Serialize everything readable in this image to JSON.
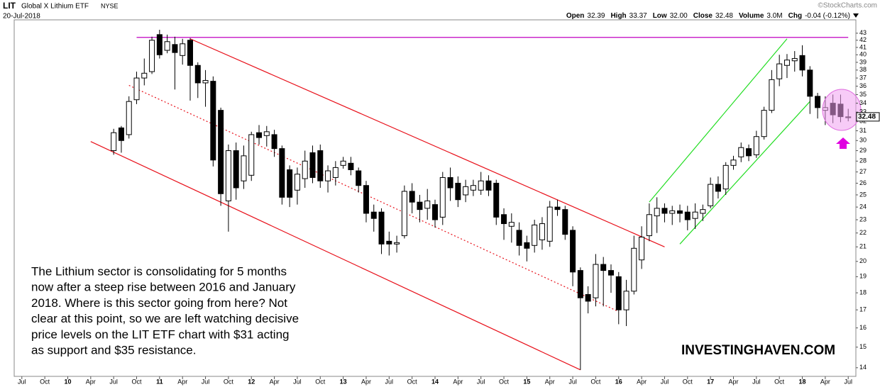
{
  "chart_data": {
    "type": "candlestick",
    "symbol": "LIT",
    "name": "Global X Lithium ETF",
    "exchange": "NYSE",
    "date": "20-Jul-2018",
    "source": "©StockCharts.com",
    "quote": [
      {
        "label": "Open",
        "value": "32.39"
      },
      {
        "label": "High",
        "value": "33.37"
      },
      {
        "label": "Low",
        "value": "32.00"
      },
      {
        "label": "Close",
        "value": "32.48"
      },
      {
        "label": "Volume",
        "value": "3.0M"
      },
      {
        "label": "Chg",
        "value": "-0.04 (-0.12%)"
      }
    ],
    "annotation": [
      "The Lithium sector is consolidating for 5 months",
      "now after a steep rise between 2016 and January",
      "2018. Where is this sector going from here? Not",
      "clear at this point, so we are left watching decisive",
      "price levels on the LIT ETF chart with $31 acting",
      "as support and $35 resistance."
    ],
    "watermark": "INVESTINGHAVEN.COM",
    "log_scale": true,
    "grid": false,
    "color": "#000000",
    "last_price": 32.48,
    "xlim": [
      "2009-06",
      "2018-08"
    ],
    "ylim": [
      13.6,
      43.5
    ],
    "yticks": [
      14,
      15,
      16,
      17,
      18,
      19,
      20,
      21,
      22,
      23,
      24,
      25,
      26,
      27,
      28,
      29,
      30,
      31,
      32,
      33,
      34,
      35,
      36,
      37,
      38,
      39,
      40,
      41,
      42,
      43
    ],
    "xticks": [
      {
        "value": "2009-07",
        "label": "Jul"
      },
      {
        "value": "2009-10",
        "label": "Oct"
      },
      {
        "value": "2010-01",
        "label": "10"
      },
      {
        "value": "2010-04",
        "label": "Apr"
      },
      {
        "value": "2010-07",
        "label": "Jul"
      },
      {
        "value": "2010-10",
        "label": "Oct"
      },
      {
        "value": "2011-01",
        "label": "11"
      },
      {
        "value": "2011-04",
        "label": "Apr"
      },
      {
        "value": "2011-07",
        "label": "Jul"
      },
      {
        "value": "2011-10",
        "label": "Oct"
      },
      {
        "value": "2012-01",
        "label": "12"
      },
      {
        "value": "2012-04",
        "label": "Apr"
      },
      {
        "value": "2012-07",
        "label": "Jul"
      },
      {
        "value": "2012-10",
        "label": "Oct"
      },
      {
        "value": "2013-01",
        "label": "13"
      },
      {
        "value": "2013-04",
        "label": "Apr"
      },
      {
        "value": "2013-07",
        "label": "Jul"
      },
      {
        "value": "2013-10",
        "label": "Oct"
      },
      {
        "value": "2014-01",
        "label": "14"
      },
      {
        "value": "2014-04",
        "label": "Apr"
      },
      {
        "value": "2014-07",
        "label": "Jul"
      },
      {
        "value": "2014-10",
        "label": "Oct"
      },
      {
        "value": "2015-01",
        "label": "15"
      },
      {
        "value": "2015-04",
        "label": "Apr"
      },
      {
        "value": "2015-07",
        "label": "Jul"
      },
      {
        "value": "2015-10",
        "label": "Oct"
      },
      {
        "value": "2016-01",
        "label": "16"
      },
      {
        "value": "2016-04",
        "label": "Apr"
      },
      {
        "value": "2016-07",
        "label": "Jul"
      },
      {
        "value": "2016-10",
        "label": "Oct"
      },
      {
        "value": "2017-01",
        "label": "17"
      },
      {
        "value": "2017-04",
        "label": "Apr"
      },
      {
        "value": "2017-07",
        "label": "Jul"
      },
      {
        "value": "2017-10",
        "label": "Oct"
      },
      {
        "value": "2018-01",
        "label": "18"
      },
      {
        "value": "2018-04",
        "label": "Apr"
      },
      {
        "value": "2018-07",
        "label": "Jul"
      }
    ],
    "x": [
      "2010-07",
      "2010-08",
      "2010-09",
      "2010-10",
      "2010-11",
      "2010-12",
      "2011-01",
      "2011-02",
      "2011-03",
      "2011-04",
      "2011-05",
      "2011-06",
      "2011-07",
      "2011-08",
      "2011-09",
      "2011-10",
      "2011-11",
      "2011-12",
      "2012-01",
      "2012-02",
      "2012-03",
      "2012-04",
      "2012-05",
      "2012-06",
      "2012-07",
      "2012-08",
      "2012-09",
      "2012-10",
      "2012-11",
      "2012-12",
      "2013-01",
      "2013-02",
      "2013-03",
      "2013-04",
      "2013-05",
      "2013-06",
      "2013-07",
      "2013-08",
      "2013-09",
      "2013-10",
      "2013-11",
      "2013-12",
      "2014-01",
      "2014-02",
      "2014-03",
      "2014-04",
      "2014-05",
      "2014-06",
      "2014-07",
      "2014-08",
      "2014-09",
      "2014-10",
      "2014-11",
      "2014-12",
      "2015-01",
      "2015-02",
      "2015-03",
      "2015-04",
      "2015-05",
      "2015-06",
      "2015-07",
      "2015-08",
      "2015-09",
      "2015-10",
      "2015-11",
      "2015-12",
      "2016-01",
      "2016-02",
      "2016-03",
      "2016-04",
      "2016-05",
      "2016-06",
      "2016-07",
      "2016-08",
      "2016-09",
      "2016-10",
      "2016-11",
      "2016-12",
      "2017-01",
      "2017-02",
      "2017-03",
      "2017-04",
      "2017-05",
      "2017-06",
      "2017-07",
      "2017-08",
      "2017-09",
      "2017-10",
      "2017-11",
      "2017-12",
      "2018-01",
      "2018-02",
      "2018-03",
      "2018-04",
      "2018-05",
      "2018-06",
      "2018-07"
    ],
    "open": [
      29.0,
      31.3,
      30.6,
      34.4,
      37.0,
      37.8,
      42.8,
      40.6,
      41.4,
      39.9,
      42.0,
      38.6,
      36.4,
      36.6,
      33.2,
      24.5,
      29.0,
      26.2,
      26.7,
      30.8,
      30.5,
      30.6,
      29.2,
      27.2,
      25.4,
      26.4,
      28.8,
      29.0,
      26.2,
      26.5,
      27.6,
      27.8,
      27.1,
      25.8,
      23.6,
      23.6,
      21.4,
      21.2,
      21.8,
      25.3,
      24.4,
      23.9,
      24.2,
      23.2,
      26.5,
      26.0,
      25.0,
      25.4,
      25.4,
      26.2,
      26.0,
      23.4,
      22.5,
      22.2,
      21.3,
      21.1,
      21.5,
      21.4,
      24.0,
      23.8,
      22.2,
      19.4,
      17.9,
      17.7,
      19.8,
      19.4,
      19.0,
      17.0,
      18.1,
      20.1,
      21.8,
      23.3,
      23.9,
      23.5,
      23.7,
      23.6,
      23.1,
      23.5,
      24.1,
      25.9,
      25.5,
      27.6,
      28.4,
      29.2,
      28.6,
      30.4,
      33.2,
      36.9,
      38.6,
      39.2,
      39.9,
      38.0,
      34.8,
      33.2,
      34.0,
      33.9,
      32.39
    ],
    "high": [
      31.2,
      31.5,
      34.8,
      37.8,
      39.5,
      42.5,
      43.5,
      42.8,
      42.5,
      42.2,
      42.3,
      39.0,
      38.0,
      37.2,
      33.5,
      29.6,
      29.8,
      29.5,
      30.9,
      31.6,
      31.5,
      31.1,
      29.5,
      27.6,
      27.4,
      29.0,
      29.5,
      29.6,
      27.6,
      28.0,
      28.4,
      28.4,
      27.4,
      26.2,
      24.2,
      23.9,
      22.1,
      21.8,
      25.8,
      26.0,
      25.0,
      25.5,
      24.6,
      27.0,
      27.4,
      26.6,
      26.3,
      26.3,
      27.0,
      26.7,
      26.3,
      23.9,
      23.5,
      22.8,
      21.8,
      23.0,
      23.2,
      24.5,
      24.6,
      24.1,
      22.5,
      19.6,
      18.4,
      20.5,
      20.3,
      19.8,
      19.3,
      18.8,
      21.8,
      22.5,
      24.3,
      24.8,
      24.3,
      24.1,
      24.2,
      24.1,
      24.3,
      24.2,
      26.5,
      26.6,
      27.9,
      28.5,
      29.8,
      29.6,
      31.0,
      33.6,
      38.0,
      40.0,
      40.1,
      40.5,
      41.3,
      38.5,
      35.2,
      34.8,
      35.0,
      35.0,
      33.37
    ],
    "low": [
      28.6,
      28.8,
      30.2,
      33.9,
      36.1,
      37.5,
      39.5,
      40.2,
      35.6,
      38.7,
      34.3,
      34.6,
      33.6,
      27.5,
      24.1,
      22.1,
      24.6,
      25.5,
      26.2,
      29.6,
      29.4,
      28.4,
      24.2,
      24.0,
      24.2,
      25.6,
      26.0,
      25.6,
      25.2,
      25.8,
      27.3,
      26.7,
      25.2,
      22.8,
      22.1,
      20.5,
      20.4,
      20.6,
      21.6,
      23.5,
      22.8,
      23.0,
      22.4,
      22.6,
      24.5,
      24.0,
      24.4,
      24.9,
      25.0,
      24.9,
      22.6,
      21.5,
      21.3,
      20.4,
      20.0,
      20.6,
      20.8,
      21.0,
      23.3,
      21.5,
      18.4,
      13.9,
      16.8,
      17.2,
      17.2,
      18.0,
      16.2,
      16.1,
      17.9,
      19.5,
      21.4,
      22.0,
      22.8,
      22.6,
      22.8,
      22.2,
      22.3,
      22.9,
      23.9,
      24.7,
      25.0,
      27.2,
      27.9,
      28.0,
      28.3,
      30.1,
      32.9,
      36.0,
      37.0,
      37.8,
      37.2,
      32.8,
      32.3,
      31.6,
      31.8,
      31.9,
      32.0
    ],
    "close": [
      30.8,
      30.0,
      34.2,
      37.0,
      37.6,
      42.0,
      40.0,
      41.8,
      40.3,
      41.5,
      38.6,
      36.4,
      36.7,
      28.1,
      25.1,
      29.0,
      25.6,
      28.5,
      30.6,
      30.3,
      30.9,
      29.2,
      24.8,
      24.8,
      26.8,
      28.0,
      26.5,
      26.2,
      27.1,
      27.4,
      28.0,
      27.2,
      25.8,
      23.5,
      23.1,
      21.2,
      21.2,
      21.3,
      25.3,
      24.4,
      23.8,
      24.5,
      23.0,
      26.5,
      25.6,
      24.6,
      25.7,
      25.8,
      26.2,
      25.4,
      23.2,
      22.7,
      22.8,
      21.1,
      20.9,
      22.6,
      22.7,
      24.0,
      23.8,
      21.9,
      19.3,
      17.7,
      17.5,
      19.8,
      19.4,
      19.1,
      17.0,
      18.1,
      20.9,
      21.7,
      23.4,
      23.9,
      23.5,
      23.7,
      23.5,
      23.0,
      23.6,
      23.8,
      25.9,
      25.3,
      27.6,
      28.1,
      29.3,
      28.5,
      30.4,
      33.2,
      36.8,
      38.8,
      39.3,
      39.5,
      38.0,
      34.8,
      33.5,
      33.5,
      32.7,
      32.5,
      32.48
    ],
    "trendlines": [
      {
        "color": "#c000c0",
        "style": "solid",
        "x": [
          "2010-10",
          "2018-07"
        ],
        "y": [
          42.4,
          42.4
        ]
      },
      {
        "color": "#e8101a",
        "style": "solid",
        "x": [
          "2011-05",
          "2016-07"
        ],
        "y": [
          42.2,
          21.0
        ]
      },
      {
        "color": "#e8101a",
        "style": "solid",
        "x": [
          "2010-04",
          "2015-08"
        ],
        "y": [
          29.9,
          13.9
        ]
      },
      {
        "color": "#e8101a",
        "style": "dotted",
        "x": [
          "2010-09",
          "2016-01"
        ],
        "y": [
          36.1,
          16.9
        ]
      },
      {
        "color": "#22dd22",
        "style": "solid",
        "x": [
          "2016-05",
          "2017-11"
        ],
        "y": [
          24.4,
          42.2
        ]
      },
      {
        "color": "#22dd22",
        "style": "solid",
        "x": [
          "2016-09",
          "2018-02"
        ],
        "y": [
          21.2,
          34.2
        ]
      }
    ]
  }
}
